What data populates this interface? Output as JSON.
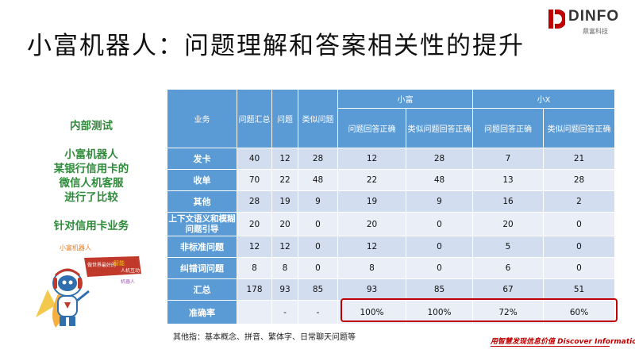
{
  "slide": {
    "title": "小富机器人：问题理解和答案相关性的提升",
    "logo_text": "DINFO",
    "logo_sub": "鼎富科技",
    "left_lines": [
      "内部测试",
      "",
      "小富机器人",
      "某银行信用卡的",
      "微信人机客服",
      "进行了比较",
      "",
      "针对信用卡业务"
    ],
    "mascot_text": [
      "小富机器人",
      "做世界最好的",
      "智能",
      "人机互动",
      "机器人"
    ],
    "footnote": "其他指：基本概念、拼音、繁体字、日常聊天问题等",
    "slogan": "用智慧发现信息价值 Discover Information",
    "colors": {
      "header_blue": "#5b9bd5",
      "row_dark": "#d2deef",
      "row_light": "#eaeff7",
      "highlight": "#c00000",
      "left_text": "#2e8b3a"
    }
  },
  "table": {
    "headers": {
      "business": "业务",
      "summary": "问题汇总",
      "questions": "问题",
      "similar": "类似问题",
      "group_a": "小富",
      "group_b": "小X",
      "a_correct": "问题回答正确",
      "a_similar": "类似问题回答正确",
      "b_correct": "问题回答正确",
      "b_similar": "类似问题回答正确"
    },
    "rows": [
      {
        "name": "发卡",
        "cells": [
          "40",
          "12",
          "28",
          "12",
          "28",
          "7",
          "21"
        ]
      },
      {
        "name": "收单",
        "cells": [
          "70",
          "22",
          "48",
          "22",
          "48",
          "13",
          "28"
        ]
      },
      {
        "name": "其他",
        "cells": [
          "28",
          "19",
          "9",
          "19",
          "9",
          "16",
          "2"
        ]
      },
      {
        "name": "上下文语义和模糊问题引导",
        "cells": [
          "20",
          "20",
          "0",
          "20",
          "0",
          "20",
          "0"
        ]
      },
      {
        "name": "非标准问题",
        "cells": [
          "12",
          "12",
          "0",
          "12",
          "0",
          "5",
          "0"
        ]
      },
      {
        "name": "纠错词问题",
        "cells": [
          "8",
          "8",
          "0",
          "8",
          "0",
          "6",
          "0"
        ]
      },
      {
        "name": "汇总",
        "cells": [
          "178",
          "93",
          "85",
          "93",
          "85",
          "67",
          "51"
        ]
      },
      {
        "name": "准确率",
        "cells": [
          "",
          "-",
          "-",
          "100%",
          "100%",
          "72%",
          "60%"
        ]
      }
    ]
  }
}
